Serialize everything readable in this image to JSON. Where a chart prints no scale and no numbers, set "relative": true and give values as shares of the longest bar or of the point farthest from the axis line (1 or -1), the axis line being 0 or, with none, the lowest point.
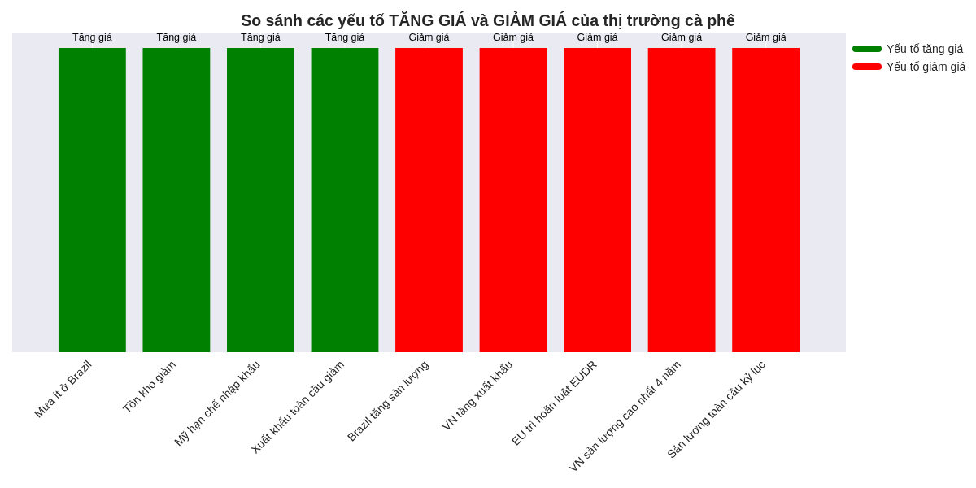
{
  "chart_data": {
    "type": "bar",
    "title": "So sánh các yếu tố TĂNG GIÁ và GIẢM GIÁ của thị trường cà phê",
    "categories": [
      "Mưa ít ở Brazil",
      "Tồn kho giảm",
      "Mỹ hạn chế nhập khẩu",
      "Xuất khẩu toàn cầu giảm",
      "Brazil tăng sản lượng",
      "VN tăng xuất khẩu",
      "EU trì hoãn luật EUDR",
      "VN sản lượng cao nhất 4 năm",
      "Sản lượng toàn cầu kỷ lục"
    ],
    "series": [
      {
        "name": "Yếu tố tăng giá",
        "color": "#008000",
        "values": [
          1,
          1,
          1,
          1,
          null,
          null,
          null,
          null,
          null
        ]
      },
      {
        "name": "Yếu tố giảm giá",
        "color": "#ff0000",
        "values": [
          null,
          null,
          null,
          null,
          1,
          1,
          1,
          1,
          1
        ]
      }
    ],
    "annotations": [
      {
        "text": "Tăng giá",
        "x": "Mưa ít ở Brazil",
        "y": 1
      },
      {
        "text": "Tăng giá",
        "x": "Tồn kho giảm",
        "y": 1
      },
      {
        "text": "Tăng giá",
        "x": "Mỹ hạn chế nhập khẩu",
        "y": 1
      },
      {
        "text": "Tăng giá",
        "x": "Xuất khẩu toàn cầu giảm",
        "y": 1
      },
      {
        "text": "Giảm giá",
        "x": "Brazil tăng sản lượng",
        "y": 1
      },
      {
        "text": "Giảm giá",
        "x": "VN tăng xuất khẩu",
        "y": 1
      },
      {
        "text": "Giảm giá",
        "x": "EU trì hoãn luật EUDR",
        "y": 1
      },
      {
        "text": "Giảm giá",
        "x": "VN sản lượng cao nhất 4 năm",
        "y": 1
      },
      {
        "text": "Giảm giá",
        "x": "Sản lượng toàn cầu kỷ lục",
        "y": 1
      }
    ],
    "relative": true,
    "grid": "x",
    "legend": "top right"
  }
}
